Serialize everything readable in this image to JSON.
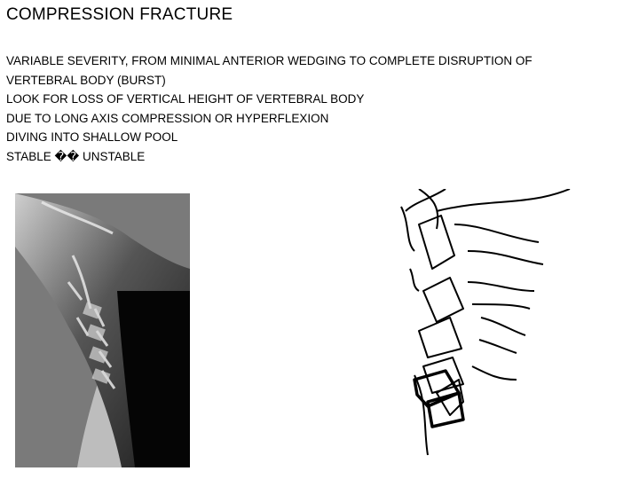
{
  "header": {
    "title": "COMPRESSION FRACTURE"
  },
  "body": {
    "lines": [
      "VARIABLE SEVERITY, FROM MINIMAL ANTERIOR WEDGING TO COMPLETE DISRUPTION OF",
      "VERTEBRAL BODY (BURST)",
      "LOOK FOR LOSS OF VERTICAL HEIGHT OF VERTEBRAL BODY",
      "DUE TO LONG AXIS COMPRESSION OR HYPERFLEXION",
      "DIVING INTO SHALLOW POOL",
      "STABLE �� UNSTABLE"
    ]
  }
}
